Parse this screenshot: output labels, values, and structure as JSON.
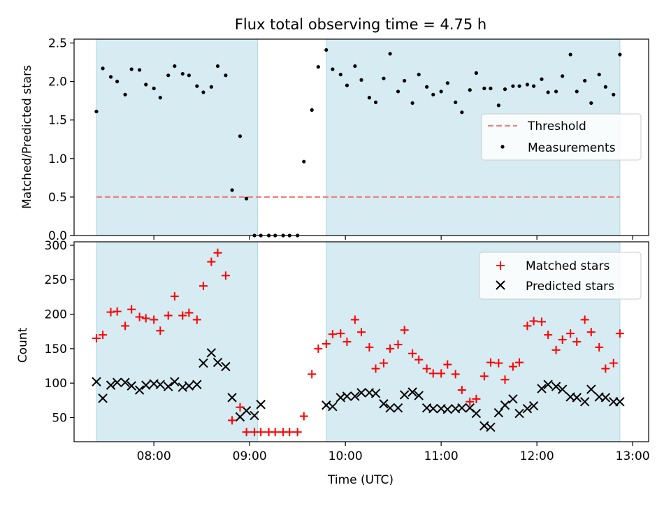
{
  "title": "Flux total observing time = 4.75 h",
  "colors": {
    "shade": "#add8e6",
    "threshold": "#f08080",
    "matched": "#ff0000",
    "predicted": "#000000",
    "measurement": "#000000"
  },
  "chart_data": [
    {
      "type": "scatter",
      "ylabel": "Matched/Predicted stars",
      "ylim": [
        0,
        2.55
      ],
      "yticks": [
        "0.0",
        "0.5",
        "1.0",
        "1.5",
        "2.0",
        "2.5"
      ],
      "ytick_values": [
        0,
        0.5,
        1.0,
        1.5,
        2.0,
        2.5
      ],
      "shaded_intervals": [
        [
          "07:24",
          "09:05"
        ],
        [
          "09:48",
          "12:52"
        ]
      ],
      "threshold": {
        "name": "Threshold",
        "value": 0.5,
        "range": [
          "07:24",
          "12:52"
        ]
      },
      "legend": {
        "position": "center-right",
        "entries": [
          "Threshold",
          "Measurements"
        ]
      },
      "series": [
        {
          "name": "Measurements",
          "x": [
            "07:24",
            "07:28",
            "07:33",
            "07:37",
            "07:42",
            "07:46",
            "07:51",
            "07:55",
            "08:00",
            "08:04",
            "08:09",
            "08:13",
            "08:18",
            "08:22",
            "08:27",
            "08:31",
            "08:36",
            "08:40",
            "08:45",
            "08:49",
            "08:54",
            "08:58",
            "09:03",
            "09:07",
            "09:12",
            "09:16",
            "09:21",
            "09:25",
            "09:30",
            "09:34",
            "09:39",
            "09:43",
            "09:48",
            "09:52",
            "09:57",
            "10:01",
            "10:06",
            "10:10",
            "10:15",
            "10:19",
            "10:24",
            "10:28",
            "10:33",
            "10:37",
            "10:42",
            "10:46",
            "10:51",
            "10:55",
            "11:00",
            "11:04",
            "11:09",
            "11:13",
            "11:18",
            "11:22",
            "11:27",
            "11:31",
            "11:36",
            "11:40",
            "11:45",
            "11:49",
            "11:54",
            "11:58",
            "12:03",
            "12:07",
            "12:12",
            "12:16",
            "12:21",
            "12:25",
            "12:30",
            "12:34",
            "12:39",
            "12:43",
            "12:48",
            "12:52"
          ],
          "y": [
            1.61,
            2.17,
            2.06,
            2.0,
            1.83,
            2.16,
            2.15,
            1.96,
            1.91,
            1.79,
            2.08,
            2.2,
            2.1,
            2.08,
            1.94,
            1.86,
            1.93,
            2.2,
            2.08,
            0.59,
            1.29,
            0.48,
            0,
            0,
            0,
            0,
            0,
            0,
            0,
            0.96,
            1.63,
            2.19,
            2.41,
            2.16,
            2.09,
            1.95,
            2.2,
            2.02,
            1.79,
            1.73,
            2.04,
            2.36,
            1.87,
            2.01,
            1.72,
            2.09,
            1.93,
            1.83,
            1.87,
            1.98,
            1.73,
            1.6,
            1.89,
            2.11,
            1.91,
            1.91,
            1.69,
            1.9,
            1.94,
            1.94,
            1.96,
            1.94,
            2.03,
            1.86,
            1.87,
            2.07,
            2.35,
            1.87,
            2.01,
            1.72,
            2.09,
            1.93,
            1.83,
            2.35
          ]
        }
      ]
    },
    {
      "type": "scatter",
      "xlabel": "Time (UTC)",
      "ylabel": "Count",
      "xlim": [
        "07:10",
        "13:10"
      ],
      "xticks": [
        "08:00",
        "09:00",
        "10:00",
        "11:00",
        "12:00",
        "13:00"
      ],
      "ylim": [
        15,
        305
      ],
      "yticks": [
        "50",
        "100",
        "150",
        "200",
        "250",
        "300"
      ],
      "ytick_values": [
        50,
        100,
        150,
        200,
        250,
        300
      ],
      "shaded_intervals": [
        [
          "07:24",
          "09:05"
        ],
        [
          "09:48",
          "12:52"
        ]
      ],
      "legend": {
        "position": "top-right",
        "entries": [
          "Matched stars",
          "Predicted stars"
        ]
      },
      "series": [
        {
          "name": "Matched stars",
          "x": [
            "07:24",
            "07:28",
            "07:33",
            "07:37",
            "07:42",
            "07:46",
            "07:51",
            "07:55",
            "08:00",
            "08:04",
            "08:09",
            "08:13",
            "08:18",
            "08:22",
            "08:27",
            "08:31",
            "08:36",
            "08:40",
            "08:45",
            "08:49",
            "08:54",
            "08:58",
            "09:03",
            "09:07",
            "09:12",
            "09:16",
            "09:21",
            "09:25",
            "09:30",
            "09:34",
            "09:39",
            "09:43",
            "09:48",
            "09:52",
            "09:57",
            "10:01",
            "10:06",
            "10:10",
            "10:15",
            "10:19",
            "10:24",
            "10:28",
            "10:33",
            "10:37",
            "10:42",
            "10:46",
            "10:51",
            "10:55",
            "11:00",
            "11:04",
            "11:09",
            "11:13",
            "11:18",
            "11:22",
            "11:27",
            "11:31",
            "11:36",
            "11:40",
            "11:45",
            "11:49",
            "11:54",
            "11:58",
            "12:03",
            "12:07",
            "12:12",
            "12:16",
            "12:21",
            "12:25",
            "12:30",
            "12:34",
            "12:39",
            "12:43",
            "12:48",
            "12:52"
          ],
          "y": [
            165,
            170,
            203,
            204,
            183,
            207,
            196,
            194,
            192,
            176,
            198,
            226,
            198,
            202,
            192,
            241,
            276,
            289,
            256,
            46,
            65,
            29,
            29,
            29,
            29,
            29,
            29,
            29,
            29,
            52,
            113,
            150,
            157,
            171,
            172,
            160,
            192,
            174,
            152,
            121,
            129,
            150,
            156,
            177,
            143,
            134,
            121,
            114,
            114,
            127,
            113,
            90,
            73,
            77,
            110,
            130,
            129,
            105,
            124,
            130,
            183,
            190,
            189,
            170,
            148,
            163,
            172,
            160,
            192,
            174,
            152,
            121,
            129,
            172
          ]
        },
        {
          "name": "Predicted stars",
          "x": [
            "07:24",
            "07:28",
            "07:33",
            "07:37",
            "07:42",
            "07:46",
            "07:51",
            "07:55",
            "08:00",
            "08:04",
            "08:09",
            "08:13",
            "08:18",
            "08:22",
            "08:27",
            "08:31",
            "08:36",
            "08:40",
            "08:45",
            "08:49",
            "08:54",
            "08:58",
            "09:03",
            "09:07",
            "09:48",
            "09:52",
            "09:57",
            "10:01",
            "10:06",
            "10:10",
            "10:15",
            "10:19",
            "10:24",
            "10:28",
            "10:33",
            "10:37",
            "10:42",
            "10:46",
            "10:51",
            "10:55",
            "11:00",
            "11:04",
            "11:09",
            "11:13",
            "11:18",
            "11:22",
            "11:27",
            "11:31",
            "11:36",
            "11:40",
            "11:45",
            "11:49",
            "11:54",
            "11:58",
            "12:03",
            "12:07",
            "12:12",
            "12:16",
            "12:21",
            "12:25",
            "12:30",
            "12:34",
            "12:39",
            "12:43",
            "12:48",
            "12:52"
          ],
          "y": [
            102,
            78,
            97,
            101,
            101,
            96,
            90,
            97,
            99,
            98,
            95,
            102,
            94,
            96,
            98,
            129,
            144,
            130,
            124,
            79,
            51,
            60,
            53,
            69,
            68,
            66,
            79,
            81,
            81,
            86,
            86,
            85,
            70,
            64,
            64,
            83,
            87,
            82,
            64,
            63,
            63,
            62,
            63,
            64,
            64,
            56,
            38,
            36,
            57,
            68,
            77,
            56,
            63,
            67,
            92,
            98,
            95,
            91,
            80,
            79,
            73,
            91,
            80,
            79,
            73,
            73
          ]
        }
      ]
    }
  ]
}
